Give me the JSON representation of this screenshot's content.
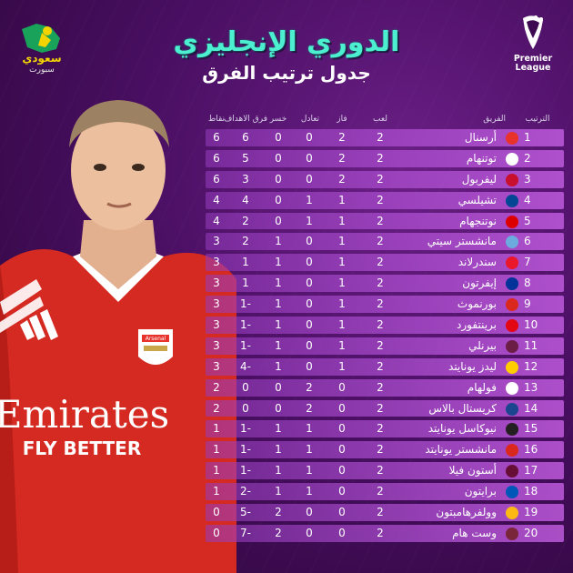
{
  "brand": {
    "name": "سعودي",
    "sub": "سبورت"
  },
  "league": {
    "line1": "Premier",
    "line2": "League"
  },
  "headline": {
    "title": "الدوري الإنجليزي",
    "subtitle": "جدول ترتيب الفرق"
  },
  "player": {
    "shirt_sponsor_1": "Emirates",
    "shirt_sponsor_2": "FLY BETTER",
    "crest": "Arsenal"
  },
  "table": {
    "headers": {
      "rank": "الترتيب",
      "team": "الفريق",
      "played": "لعب",
      "won": "فاز",
      "drawn": "تعادل",
      "lost": "خسر",
      "gd": "فرق الاهداف",
      "points": "نقاط"
    },
    "rows": [
      {
        "rank": "1",
        "team": "أرسنال",
        "p": "2",
        "w": "2",
        "d": "0",
        "l": "0",
        "gd": "6",
        "pts": "6",
        "crest": "#e8322c"
      },
      {
        "rank": "2",
        "team": "توتنهام",
        "p": "2",
        "w": "2",
        "d": "0",
        "l": "0",
        "gd": "5",
        "pts": "6",
        "crest": "#ffffff"
      },
      {
        "rank": "3",
        "team": "ليفربول",
        "p": "2",
        "w": "2",
        "d": "0",
        "l": "0",
        "gd": "3",
        "pts": "6",
        "crest": "#c8102e"
      },
      {
        "rank": "4",
        "team": "تشيلسي",
        "p": "2",
        "w": "1",
        "d": "1",
        "l": "0",
        "gd": "4",
        "pts": "4",
        "crest": "#034694"
      },
      {
        "rank": "5",
        "team": "نوتنجهام",
        "p": "2",
        "w": "1",
        "d": "1",
        "l": "0",
        "gd": "2",
        "pts": "4",
        "crest": "#dd0000"
      },
      {
        "rank": "6",
        "team": "مانشستر سيتي",
        "p": "2",
        "w": "1",
        "d": "0",
        "l": "1",
        "gd": "2",
        "pts": "3",
        "crest": "#6cabdd"
      },
      {
        "rank": "7",
        "team": "سندرلاند",
        "p": "2",
        "w": "1",
        "d": "0",
        "l": "1",
        "gd": "1",
        "pts": "3",
        "crest": "#eb172b"
      },
      {
        "rank": "8",
        "team": "إيفرتون",
        "p": "2",
        "w": "1",
        "d": "0",
        "l": "1",
        "gd": "1",
        "pts": "3",
        "crest": "#003399"
      },
      {
        "rank": "9",
        "team": "بورنموث",
        "p": "2",
        "w": "1",
        "d": "0",
        "l": "1",
        "gd": "1-",
        "pts": "3",
        "crest": "#da291c"
      },
      {
        "rank": "10",
        "team": "برينتفورد",
        "p": "2",
        "w": "1",
        "d": "0",
        "l": "1",
        "gd": "1-",
        "pts": "3",
        "crest": "#e30613"
      },
      {
        "rank": "11",
        "team": "بيرنلي",
        "p": "2",
        "w": "1",
        "d": "0",
        "l": "1",
        "gd": "1-",
        "pts": "3",
        "crest": "#6c1d45"
      },
      {
        "rank": "12",
        "team": "ليدز يونايتد",
        "p": "2",
        "w": "1",
        "d": "0",
        "l": "1",
        "gd": "4-",
        "pts": "3",
        "crest": "#ffcd00"
      },
      {
        "rank": "13",
        "team": "فولهام",
        "p": "2",
        "w": "0",
        "d": "2",
        "l": "0",
        "gd": "0",
        "pts": "2",
        "crest": "#ffffff"
      },
      {
        "rank": "14",
        "team": "كريستال بالاس",
        "p": "2",
        "w": "0",
        "d": "2",
        "l": "0",
        "gd": "0",
        "pts": "2",
        "crest": "#1b458f"
      },
      {
        "rank": "15",
        "team": "نيوكاسل يونايتد",
        "p": "2",
        "w": "0",
        "d": "1",
        "l": "1",
        "gd": "1-",
        "pts": "1",
        "crest": "#241f20"
      },
      {
        "rank": "16",
        "team": "مانشستر يونايتد",
        "p": "2",
        "w": "0",
        "d": "1",
        "l": "1",
        "gd": "1-",
        "pts": "1",
        "crest": "#da291c"
      },
      {
        "rank": "17",
        "team": "أستون فيلا",
        "p": "2",
        "w": "0",
        "d": "1",
        "l": "1",
        "gd": "1-",
        "pts": "1",
        "crest": "#670e36"
      },
      {
        "rank": "18",
        "team": "برايتون",
        "p": "2",
        "w": "0",
        "d": "1",
        "l": "1",
        "gd": "2-",
        "pts": "1",
        "crest": "#0057b8"
      },
      {
        "rank": "19",
        "team": "وولفرهامبتون",
        "p": "2",
        "w": "0",
        "d": "0",
        "l": "2",
        "gd": "5-",
        "pts": "0",
        "crest": "#fdb913"
      },
      {
        "rank": "20",
        "team": "وست هام",
        "p": "2",
        "w": "0",
        "d": "0",
        "l": "2",
        "gd": "7-",
        "pts": "0",
        "crest": "#7a263a"
      }
    ]
  }
}
